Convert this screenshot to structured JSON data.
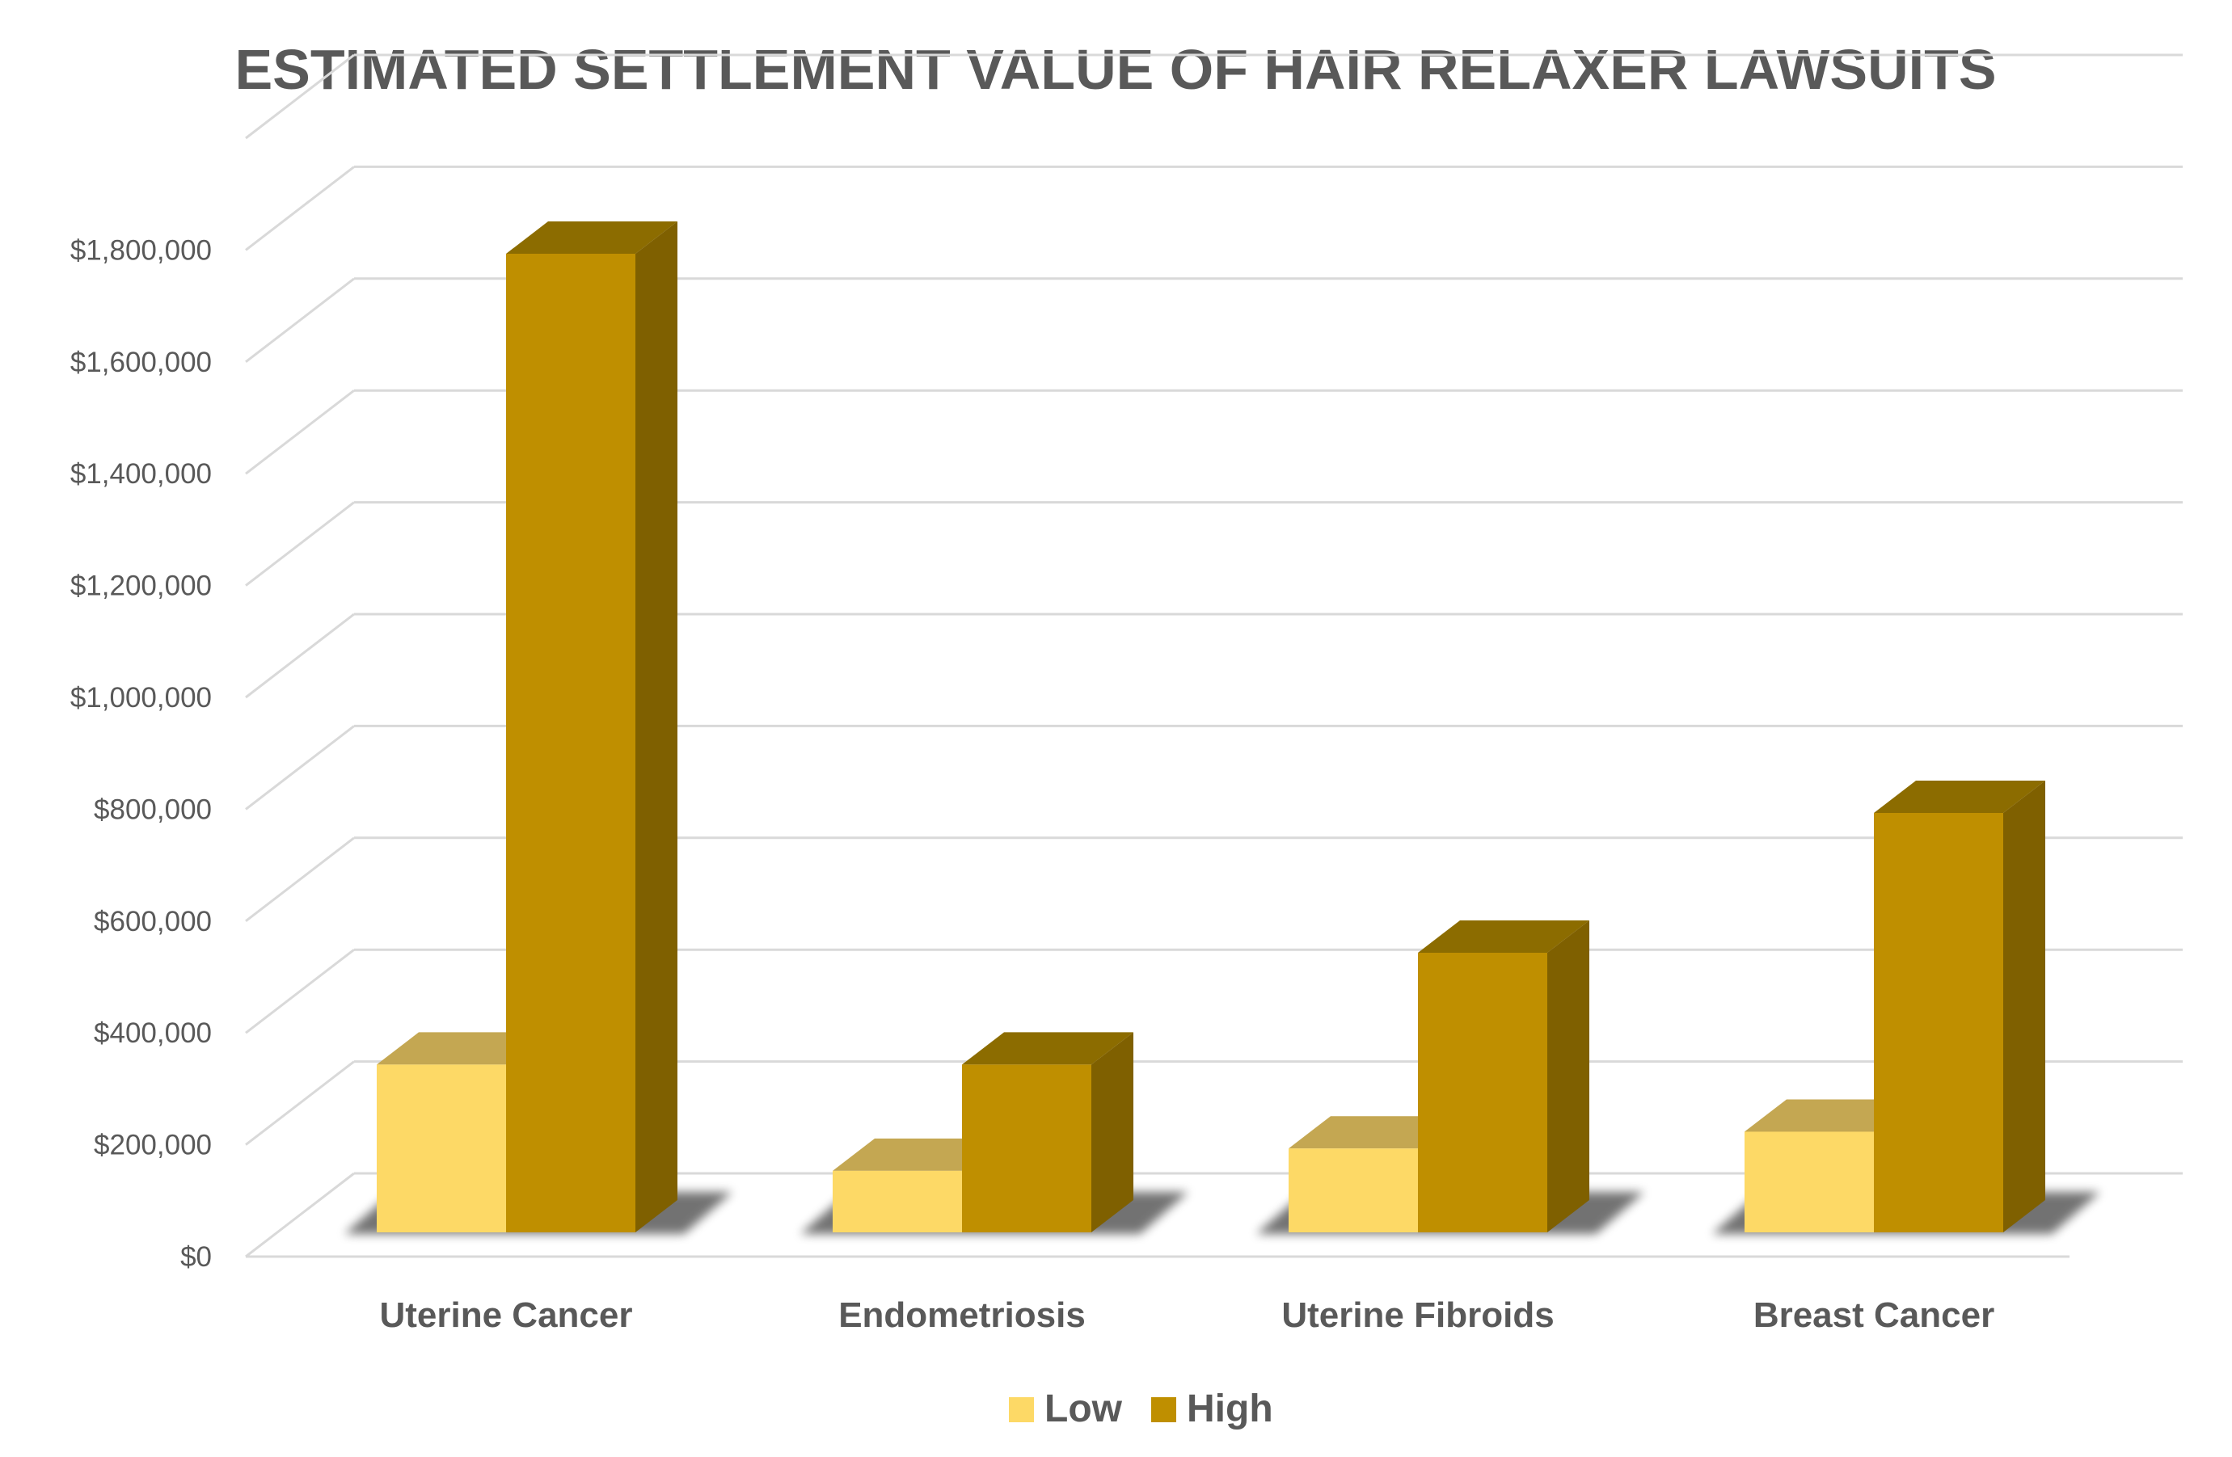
{
  "chart_data": {
    "type": "bar",
    "style": "3d-clustered-column",
    "title": "ESTIMATED SETTLEMENT VALUE OF HAIR RELAXER LAWSUITS",
    "xlabel": "",
    "ylabel": "",
    "categories": [
      "Uterine Cancer",
      "Endometriosis",
      "Uterine Fibroids",
      "Breast Cancer"
    ],
    "series": [
      {
        "name": "Low",
        "values": [
          300000,
          110000,
          150000,
          180000
        ],
        "color": "#FDD966",
        "top_color": "#C4A752"
      },
      {
        "name": "High",
        "values": [
          1750000,
          300000,
          500000,
          750000
        ],
        "color": "#BF8F00",
        "top_color": "#8C6C00",
        "side_color": "#7F6000"
      }
    ],
    "y_ticks": [
      "$0",
      "$200,000",
      "$400,000",
      "$600,000",
      "$800,000",
      "$1,000,000",
      "$1,200,000",
      "$1,400,000",
      "$1,600,000",
      "$1,800,000"
    ],
    "ylim": [
      0,
      2000000
    ],
    "grid": true,
    "legend_position": "bottom",
    "gridline_color": "#D9D9D9",
    "text_color": "#595959"
  }
}
